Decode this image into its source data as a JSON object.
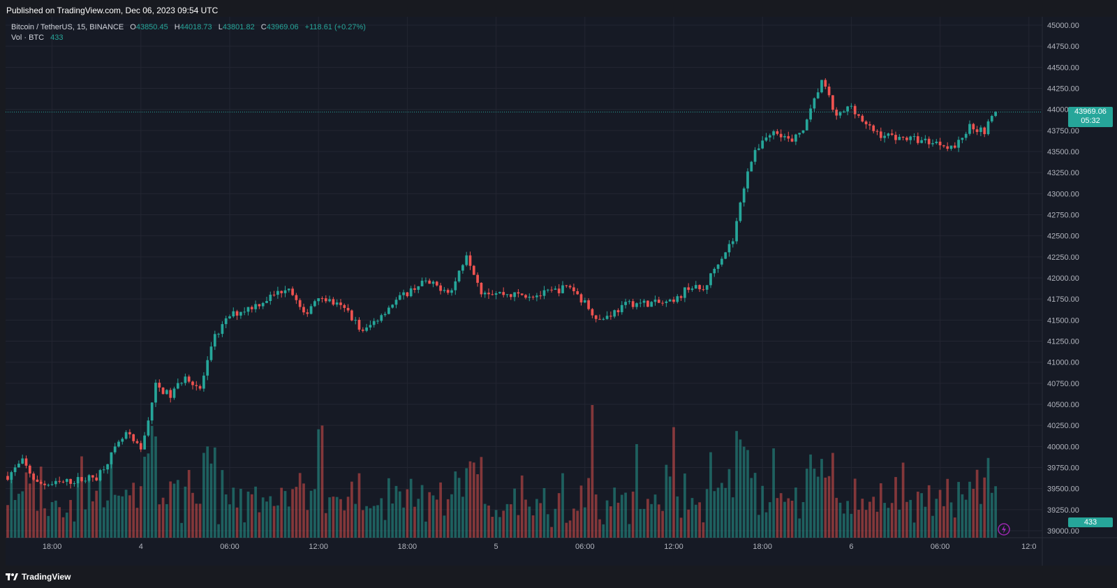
{
  "header": {
    "published": "Published on TradingView.com, Dec 06, 2023 09:54 UTC"
  },
  "legend": {
    "symbol": "Bitcoin / TetherUS, 15, BINANCE",
    "open_label": "O",
    "open": "43850.45",
    "high_label": "H",
    "high": "44018.73",
    "low_label": "L",
    "low": "43801.82",
    "close_label": "C",
    "close": "43969.06",
    "change": "+118.61 (+0.27%)",
    "vol_label": "Vol · BTC",
    "vol_value": "433"
  },
  "price_tag": {
    "price": "43969.06",
    "countdown": "05:32"
  },
  "volume_tag": "433",
  "footer": {
    "brand": "TradingView"
  },
  "colors": {
    "up": "#26a69a",
    "down": "#ef5350",
    "background": "#161a25",
    "grid": "#232632",
    "text": "#b2b5be"
  },
  "chart_data": {
    "type": "candlestick",
    "interval": "15",
    "symbol": "Bitcoin / TetherUS",
    "exchange": "BINANCE",
    "grid": true,
    "y_range": [
      39000,
      45000
    ],
    "y_ticks": [
      "45000.00",
      "44750.00",
      "44500.00",
      "44250.00",
      "44000.00",
      "43750.00",
      "43500.00",
      "43250.00",
      "43000.00",
      "42750.00",
      "42500.00",
      "42250.00",
      "42000.00",
      "41750.00",
      "41500.00",
      "41250.00",
      "41000.00",
      "40750.00",
      "40500.00",
      "40250.00",
      "40000.00",
      "39750.00",
      "39500.00",
      "39250.00",
      "39000.00"
    ],
    "x_ticks": [
      "18:00",
      "4",
      "06:00",
      "12:00",
      "18:00",
      "5",
      "06:00",
      "12:00",
      "18:00",
      "6",
      "06:00",
      "12:0"
    ],
    "last_price": 43969.06,
    "approx_close_path": [
      [
        "Dec 03 15:00",
        39650
      ],
      [
        "Dec 03 16:00",
        39820
      ],
      [
        "Dec 03 17:00",
        39560
      ],
      [
        "Dec 03 18:00",
        39550
      ],
      [
        "Dec 03 21:00",
        39640
      ],
      [
        "Dec 03 23:00",
        40150
      ],
      [
        "Dec 04 00:00",
        39950
      ],
      [
        "Dec 04 01:00",
        40720
      ],
      [
        "Dec 04 02:00",
        40600
      ],
      [
        "Dec 04 03:00",
        40850
      ],
      [
        "Dec 04 04:00",
        40680
      ],
      [
        "Dec 04 05:00",
        41300
      ],
      [
        "Dec 04 06:00",
        41550
      ],
      [
        "Dec 04 08:00",
        41700
      ],
      [
        "Dec 04 10:00",
        41900
      ],
      [
        "Dec 04 11:00",
        41550
      ],
      [
        "Dec 04 12:00",
        41800
      ],
      [
        "Dec 04 14:00",
        41600
      ],
      [
        "Dec 04 15:00",
        41350
      ],
      [
        "Dec 04 17:00",
        41700
      ],
      [
        "Dec 04 19:00",
        41950
      ],
      [
        "Dec 04 21:00",
        41850
      ],
      [
        "Dec 04 22:00",
        42300
      ],
      [
        "Dec 04 23:00",
        41850
      ],
      [
        "Dec 05 01:00",
        41800
      ],
      [
        "Dec 05 03:00",
        41800
      ],
      [
        "Dec 05 05:00",
        41900
      ],
      [
        "Dec 05 06:00",
        41700
      ],
      [
        "Dec 05 07:00",
        41500
      ],
      [
        "Dec 05 09:00",
        41700
      ],
      [
        "Dec 05 12:00",
        41700
      ],
      [
        "Dec 05 13:00",
        41900
      ],
      [
        "Dec 05 14:00",
        41850
      ],
      [
        "Dec 05 15:00",
        42200
      ],
      [
        "Dec 05 16:00",
        42450
      ],
      [
        "Dec 05 17:00",
        43300
      ],
      [
        "Dec 05 18:00",
        43650
      ],
      [
        "Dec 05 19:00",
        43750
      ],
      [
        "Dec 05 20:00",
        43600
      ],
      [
        "Dec 05 21:00",
        43850
      ],
      [
        "Dec 05 22:00",
        44350
      ],
      [
        "Dec 05 23:00",
        43900
      ],
      [
        "Dec 06 00:00",
        44050
      ],
      [
        "Dec 06 01:00",
        43800
      ],
      [
        "Dec 06 02:00",
        43700
      ],
      [
        "Dec 06 04:00",
        43650
      ],
      [
        "Dec 06 06:00",
        43600
      ],
      [
        "Dec 06 07:00",
        43550
      ],
      [
        "Dec 06 08:00",
        43800
      ],
      [
        "Dec 06 09:00",
        43750
      ],
      [
        "Dec 06 09:45",
        43969.06
      ]
    ]
  }
}
